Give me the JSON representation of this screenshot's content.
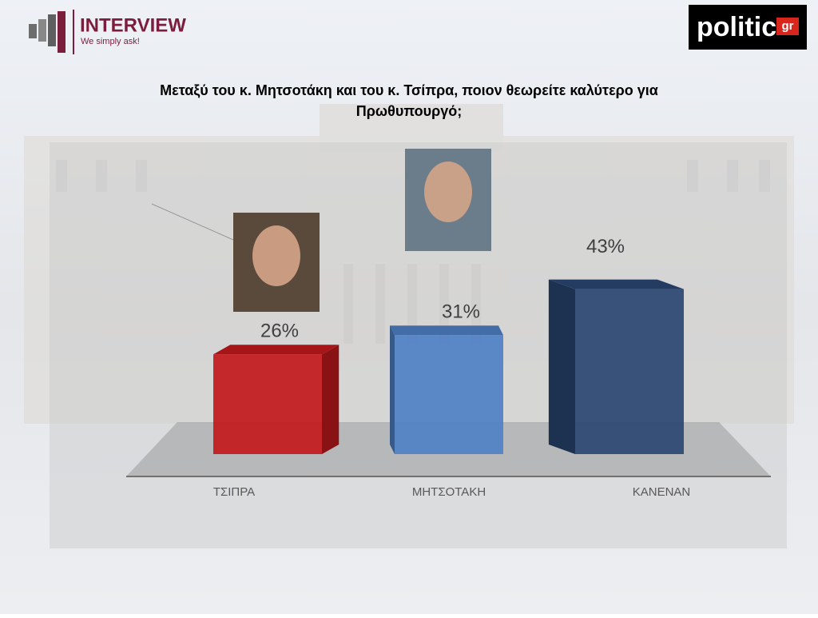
{
  "header": {
    "logo_name": "INTERVIEW",
    "logo_tagline": "We simply ask!",
    "brand": "politic",
    "brand_suffix": "gr"
  },
  "chart_data": {
    "type": "bar",
    "title": "Μεταξύ του κ. Μητσοτάκη και του κ. Τσίπρα, ποιον θεωρείτε καλύτερο για Πρωθυπουργό;",
    "categories": [
      "ΤΣΙΠΡΑ",
      "ΜΗΤΣΟΤΑΚΗ",
      "ΚΑΝΕΝΑΝ"
    ],
    "values": [
      26,
      31,
      43
    ],
    "value_labels": [
      "26%",
      "31%",
      "43%"
    ],
    "colors": [
      "#c3191c",
      "#4f80c4",
      "#2a4672"
    ]
  }
}
